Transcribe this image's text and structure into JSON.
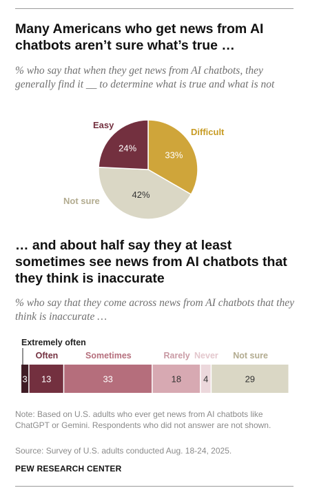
{
  "charts": {
    "pie": {
      "title": "Many Americans who get news from AI chatbots aren’t sure what’s true …",
      "subtitle": "% who say that when they get news from AI chatbots, they generally find it __ to determine what is true and what is not"
    },
    "bar": {
      "title": "… and about half say they at least sometimes see news from AI chatbots that they think is inaccurate",
      "subtitle": "% who say that they come across news from AI chatbots that they think is inaccurate …"
    }
  },
  "chart_data": [
    {
      "type": "pie",
      "title": "Many Americans who get news from AI chatbots aren’t sure what’s true …",
      "slices": [
        {
          "label": "Difficult",
          "value": 33,
          "color": "#cfa53a",
          "text_color": "#c79b23",
          "value_color": "#ffffff"
        },
        {
          "label": "Not sure",
          "value": 42,
          "color": "#dad7c5",
          "text_color": "#b2ab8f",
          "value_color": "#333333"
        },
        {
          "label": "Easy",
          "value": 24,
          "color": "#73303f",
          "text_color": "#73303f",
          "value_color": "#ffffff"
        }
      ]
    },
    {
      "type": "bar",
      "orientation": "horizontal-stacked",
      "title": "… and about half say they at least sometimes see news from AI chatbots that they think is inaccurate",
      "xlim": [
        0,
        100
      ],
      "segments": [
        {
          "label": "Extremely often",
          "value": 3,
          "color": "#3f1c25",
          "text_color": "#222222",
          "value_color": "#ffffff"
        },
        {
          "label": "Often",
          "value": 13,
          "color": "#73303f",
          "text_color": "#73303f",
          "value_color": "#ffffff"
        },
        {
          "label": "Sometimes",
          "value": 33,
          "color": "#b56e7c",
          "text_color": "#b56e7c",
          "value_color": "#ffffff"
        },
        {
          "label": "Rarely",
          "value": 18,
          "color": "#d7a9b2",
          "text_color": "#c99aa4",
          "value_color": "#333333"
        },
        {
          "label": "Never",
          "value": 4,
          "color": "#ecd8dc",
          "text_color": "#e3c7cd",
          "value_color": "#333333"
        },
        {
          "label": "Not sure",
          "value": 29,
          "color": "#dad7c5",
          "text_color": "#b2ab8f",
          "value_color": "#333333"
        }
      ]
    }
  ],
  "footer": {
    "note": "Note: Based on U.S. adults who ever get news from AI chatbots like ChatGPT or Gemini. Respondents who did not answer are not shown.",
    "source": "Source: Survey of U.S. adults conducted Aug. 18-24, 2025.",
    "brand": "PEW RESEARCH CENTER"
  }
}
